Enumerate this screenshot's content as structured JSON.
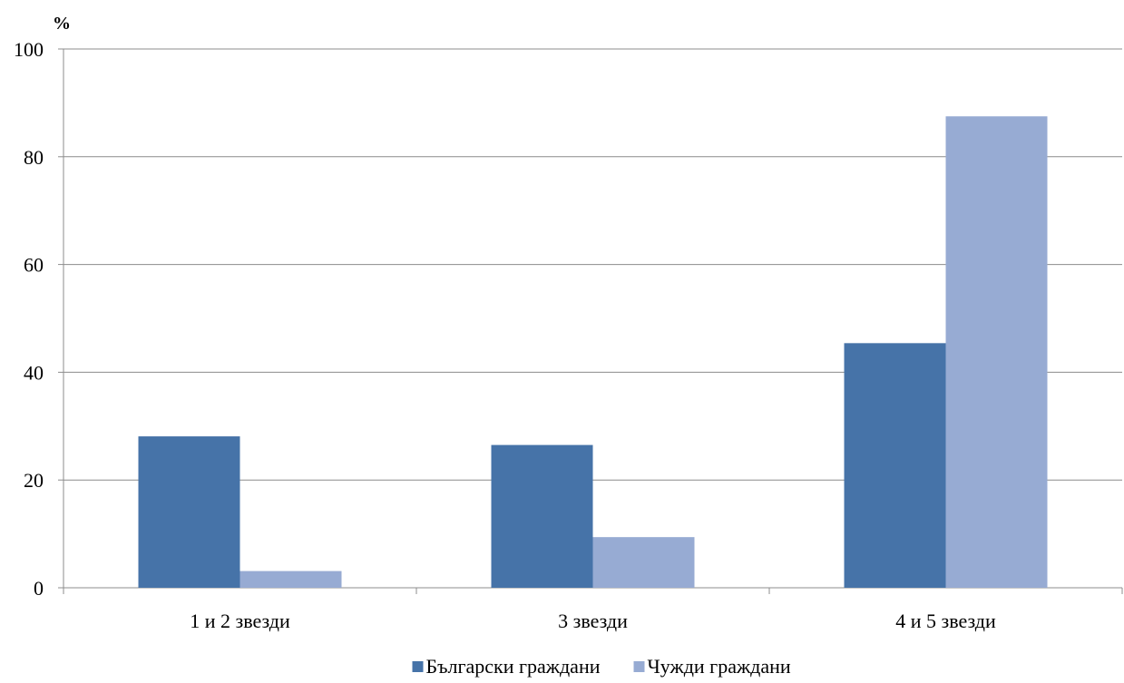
{
  "chart_data": {
    "type": "bar",
    "ylabel": "%",
    "ylim": [
      0,
      100
    ],
    "yticks": [
      "0",
      "20",
      "40",
      "60",
      "80",
      "100"
    ],
    "grid": true,
    "legend_position": "bottom",
    "categories": [
      "1 и 2 звезди",
      "3 звезди",
      "4 и 5 звезди"
    ],
    "series": [
      {
        "name": "Български граждани",
        "color": "#4673A8",
        "values": [
          28.1,
          26.5,
          45.4
        ]
      },
      {
        "name": "Чужди граждани",
        "color": "#97ABD3",
        "values": [
          3.1,
          9.4,
          87.5
        ]
      }
    ]
  }
}
